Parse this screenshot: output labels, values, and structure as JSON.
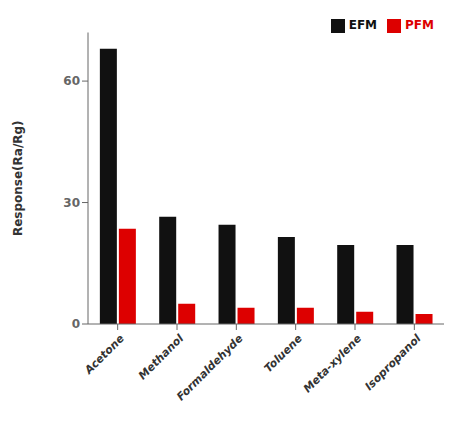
{
  "chart_data": {
    "type": "bar",
    "ylabel": "Response(Ra/Rg)",
    "categories": [
      "Acetone",
      "Methanol",
      "Formaldehyde",
      "Toluene",
      "Meta-xylene",
      "Isopropanol"
    ],
    "series": [
      {
        "name": "EFM",
        "color": "#111111",
        "values": [
          68.0,
          26.5,
          24.5,
          21.5,
          19.5,
          19.5
        ]
      },
      {
        "name": "PFM",
        "color": "#dd0000",
        "values": [
          23.5,
          5.0,
          4.0,
          4.0,
          3.0,
          2.5
        ]
      }
    ],
    "ylim": [
      0,
      72
    ],
    "yticks": [
      0,
      30,
      60
    ],
    "legend": "upper right",
    "grid": false
  }
}
